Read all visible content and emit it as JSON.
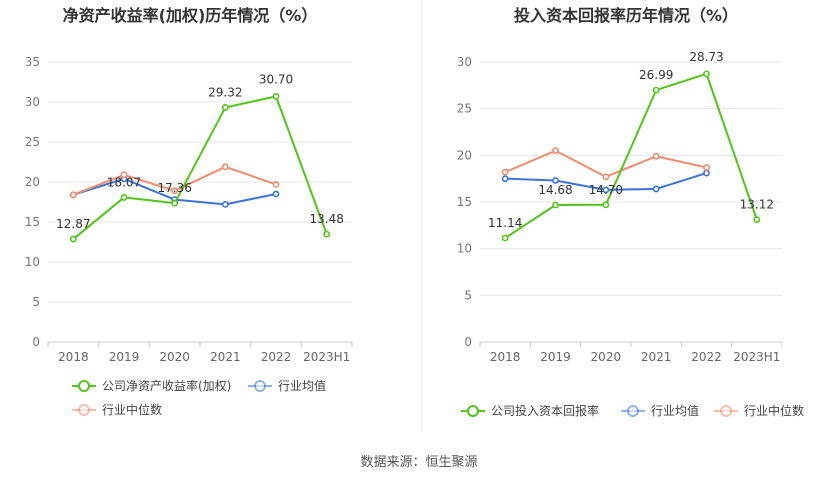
{
  "chart_data": [
    {
      "type": "line",
      "title": "净资产收益率(加权)历年情况（%）",
      "categories": [
        "2018",
        "2019",
        "2020",
        "2021",
        "2022",
        "2023H1"
      ],
      "ylim": [
        0,
        35
      ],
      "yticks": [
        0,
        5,
        10,
        15,
        20,
        25,
        30,
        35
      ],
      "grid": true,
      "legend": "bottom",
      "series": [
        {
          "name": "公司净资产收益率(加权)",
          "color": "#52c41a",
          "labeled": true,
          "values": [
            12.87,
            18.07,
            17.36,
            29.32,
            30.7,
            13.48
          ],
          "labels": [
            "12.87",
            "18.07",
            "17.36",
            "29.32",
            "30.70",
            "13.48"
          ]
        },
        {
          "name": "行业均值",
          "color": "#3b73d9",
          "labeled": false,
          "values": [
            18.4,
            20.4,
            17.8,
            17.2,
            18.5,
            null
          ]
        },
        {
          "name": "行业中位数",
          "color": "#f08c6e",
          "labeled": false,
          "values": [
            18.4,
            20.9,
            18.9,
            21.9,
            19.7,
            null
          ]
        }
      ]
    },
    {
      "type": "line",
      "title": "投入资本回报率历年情况（%）",
      "categories": [
        "2018",
        "2019",
        "2020",
        "2021",
        "2022",
        "2023H1"
      ],
      "ylim": [
        0,
        30
      ],
      "yticks": [
        0,
        5,
        10,
        15,
        20,
        25,
        30
      ],
      "grid": true,
      "legend": "bottom",
      "series": [
        {
          "name": "公司投入资本回报率",
          "color": "#52c41a",
          "labeled": true,
          "values": [
            11.14,
            14.68,
            14.7,
            26.99,
            28.73,
            13.12
          ],
          "labels": [
            "11.14",
            "14.68",
            "14.70",
            "26.99",
            "28.73",
            "13.12"
          ]
        },
        {
          "name": "行业均值",
          "color": "#3b73d9",
          "labeled": false,
          "values": [
            17.5,
            17.3,
            16.3,
            16.4,
            18.1,
            null
          ]
        },
        {
          "name": "行业中位数",
          "color": "#f08c6e",
          "labeled": false,
          "values": [
            18.2,
            20.5,
            17.7,
            19.9,
            18.7,
            null
          ]
        }
      ]
    }
  ],
  "footer": {
    "source": "数据来源：恒生聚源"
  }
}
